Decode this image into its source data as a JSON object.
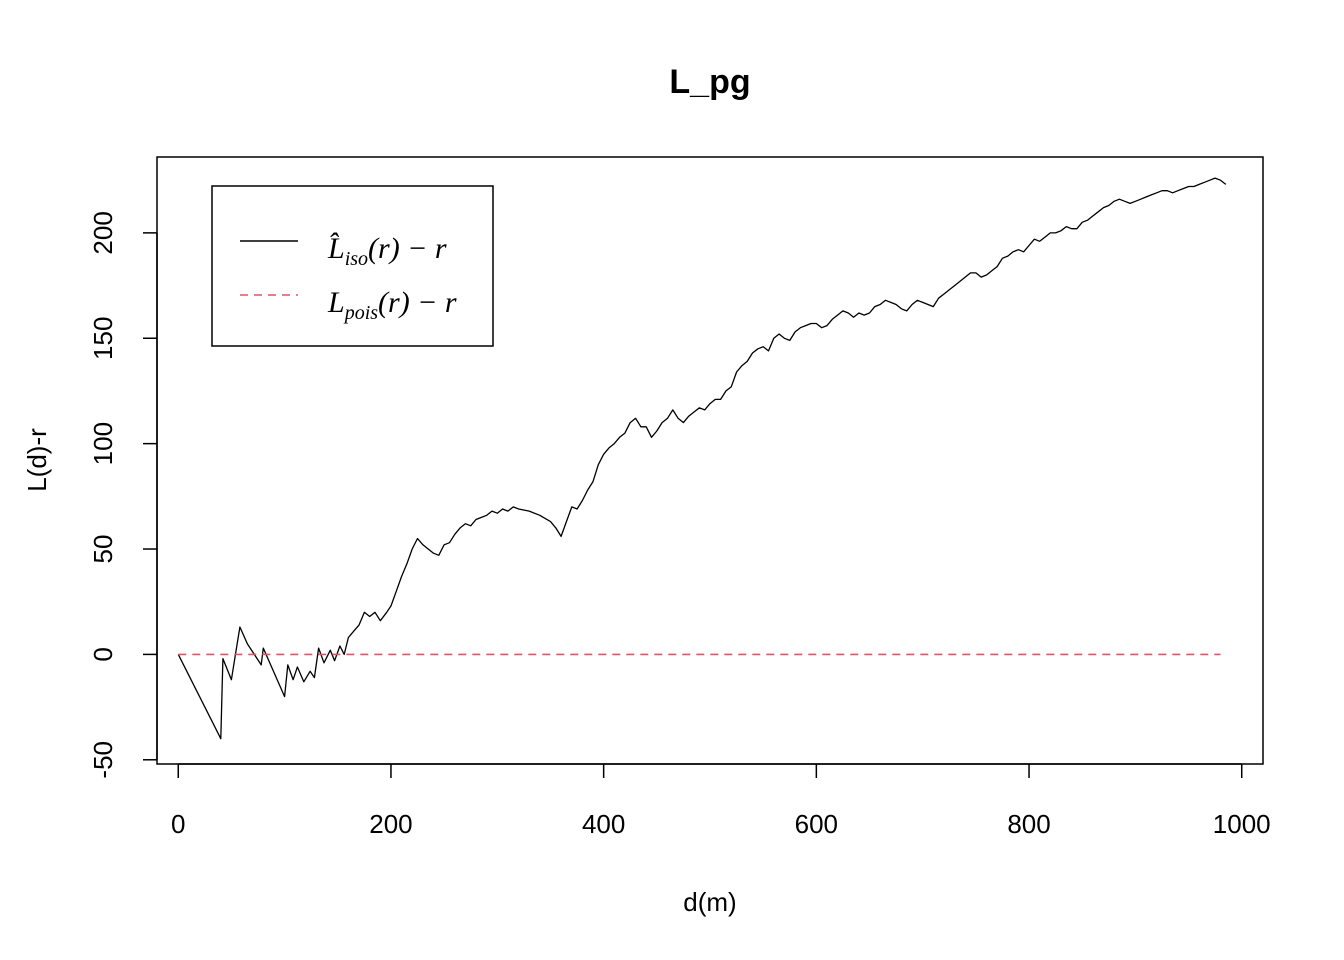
{
  "chart_data": {
    "type": "line",
    "title": "L_pg",
    "xlabel": "d(m)",
    "ylabel": "L(d)-r",
    "xlim": [
      -20,
      1020
    ],
    "ylim": [
      -52,
      236
    ],
    "xticks": [
      0,
      200,
      400,
      600,
      800,
      1000
    ],
    "yticks": [
      -50,
      0,
      50,
      100,
      150,
      200
    ],
    "grid": false,
    "legend_position": "top-left",
    "series": [
      {
        "name": "L̂_iso(r) − r",
        "legend": {
          "main": "L̂",
          "sub": "iso",
          "tail": "(r) − r"
        },
        "color": "#000000",
        "style": "solid",
        "x": [
          0,
          40,
          42,
          50,
          55,
          58,
          65,
          78,
          80,
          100,
          103,
          108,
          112,
          118,
          124,
          128,
          132,
          137,
          143,
          147,
          152,
          156,
          160,
          165,
          170,
          175,
          180,
          185,
          190,
          196,
          200,
          205,
          210,
          215,
          220,
          225,
          230,
          235,
          240,
          245,
          250,
          255,
          260,
          265,
          270,
          275,
          280,
          285,
          290,
          295,
          300,
          305,
          310,
          315,
          320,
          330,
          340,
          350,
          355,
          360,
          365,
          370,
          375,
          380,
          385,
          390,
          395,
          400,
          405,
          410,
          415,
          420,
          425,
          430,
          435,
          440,
          445,
          450,
          455,
          460,
          465,
          470,
          475,
          480,
          485,
          490,
          495,
          500,
          505,
          510,
          515,
          520,
          525,
          530,
          535,
          540,
          545,
          550,
          555,
          560,
          565,
          570,
          575,
          580,
          585,
          590,
          595,
          600,
          605,
          610,
          615,
          620,
          625,
          630,
          635,
          640,
          645,
          650,
          655,
          660,
          665,
          670,
          675,
          680,
          685,
          690,
          695,
          700,
          705,
          710,
          715,
          720,
          725,
          730,
          735,
          740,
          745,
          750,
          755,
          760,
          765,
          770,
          775,
          780,
          785,
          790,
          795,
          800,
          805,
          810,
          815,
          820,
          825,
          830,
          835,
          840,
          845,
          850,
          855,
          860,
          865,
          870,
          875,
          880,
          885,
          890,
          895,
          900,
          905,
          910,
          915,
          920,
          925,
          930,
          935,
          940,
          945,
          950,
          955,
          960,
          965,
          970,
          975,
          980,
          985
        ],
        "y": [
          0,
          -40,
          -2,
          -12,
          4,
          13,
          5,
          -5,
          3,
          -20,
          -5,
          -12,
          -6,
          -13,
          -8,
          -11,
          3,
          -4,
          2,
          -3,
          4,
          0,
          8,
          11,
          14,
          20,
          18,
          20,
          16,
          20,
          23,
          30,
          37,
          43,
          50,
          55,
          52,
          50,
          48,
          47,
          52,
          53,
          57,
          60,
          62,
          61,
          64,
          65,
          66,
          68,
          67,
          69,
          68,
          70,
          69,
          68,
          66,
          63,
          60,
          56,
          63,
          70,
          69,
          73,
          78,
          82,
          90,
          95,
          98,
          100,
          103,
          105,
          110,
          112,
          108,
          108,
          103,
          106,
          110,
          112,
          116,
          112,
          110,
          113,
          115,
          117,
          116,
          119,
          121,
          121,
          125,
          127,
          134,
          137,
          139,
          143,
          145,
          146,
          144,
          150,
          152,
          150,
          149,
          153,
          155,
          156,
          157,
          157,
          155,
          156,
          159,
          161,
          163,
          162,
          160,
          162,
          161,
          162,
          165,
          166,
          168,
          167,
          166,
          164,
          163,
          166,
          168,
          167,
          166,
          165,
          169,
          171,
          173,
          175,
          177,
          179,
          181,
          181,
          179,
          180,
          182,
          184,
          188,
          189,
          191,
          192,
          191,
          194,
          197,
          196,
          198,
          200,
          200,
          201,
          203,
          202,
          202,
          205,
          206,
          208,
          210,
          212,
          213,
          215,
          216,
          215,
          214,
          215,
          216,
          217,
          218,
          219,
          220,
          220,
          219,
          220,
          221,
          222,
          222,
          223,
          224,
          225,
          226,
          225,
          223
        ]
      },
      {
        "name": "L_pois(r) − r",
        "legend": {
          "main": "L",
          "sub": "pois",
          "tail": "(r) − r"
        },
        "color": "#df536b",
        "style": "dashed",
        "x": [
          0,
          980
        ],
        "y": [
          0,
          0
        ]
      }
    ]
  }
}
